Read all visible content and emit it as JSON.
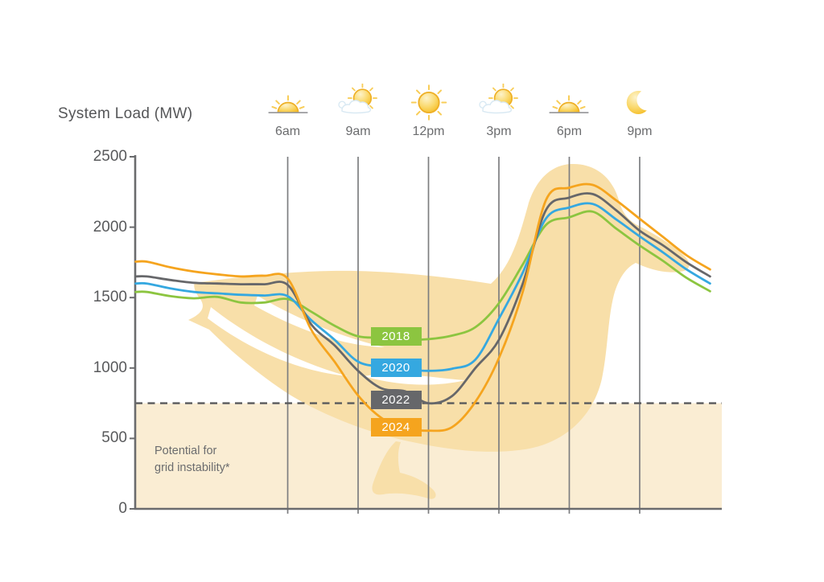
{
  "title": "System Load (MW)",
  "annotation": "Potential for\ngrid instability*",
  "colors": {
    "green": "#8CC540",
    "blue": "#35A8E0",
    "gray": "#66676A",
    "orange": "#F5A41E",
    "duck": "#F8DFA9",
    "band": "#FAEDD3",
    "grid": "#7D7E80",
    "axis": "#6A6B6D",
    "dashed": "#595A5C",
    "text": "#58595B"
  },
  "y_axis": {
    "ticks": [
      "2500",
      "2000",
      "1500",
      "1000",
      "500",
      "0"
    ],
    "tick_values": [
      2500,
      2000,
      1500,
      1000,
      500,
      0
    ]
  },
  "timeline": [
    {
      "label": "6am",
      "hour": 6,
      "icon": "sunrise-icon"
    },
    {
      "label": "9am",
      "hour": 9,
      "icon": "sun-cloud-icon"
    },
    {
      "label": "12pm",
      "hour": 12,
      "icon": "sun-icon"
    },
    {
      "label": "3pm",
      "hour": 15,
      "icon": "sun-cloud-icon"
    },
    {
      "label": "6pm",
      "hour": 18,
      "icon": "sunset-icon"
    },
    {
      "label": "9pm",
      "hour": 21,
      "icon": "moon-icon"
    }
  ],
  "chart_data": {
    "type": "line",
    "title": "System Load (MW)",
    "ylabel": "System Load (MW)",
    "ylim": [
      0,
      2500
    ],
    "y_ticks": [
      0,
      500,
      1000,
      1500,
      2000,
      2500
    ],
    "x_hours": [
      0,
      1,
      2,
      3,
      4,
      5,
      6,
      7,
      8,
      9,
      10,
      11,
      12,
      13,
      14,
      15,
      16,
      17,
      18,
      19,
      20,
      21,
      22,
      23,
      24
    ],
    "x_tick_hours": [
      6,
      9,
      12,
      15,
      18,
      21
    ],
    "x_tick_labels": [
      "6am",
      "9am",
      "12pm",
      "3pm",
      "6pm",
      "9pm"
    ],
    "grid": "vertical-only",
    "legend": "inline-badges",
    "threshold": {
      "value": 750,
      "style": "dashed",
      "label": "Potential for\ngrid instability*"
    },
    "series": [
      {
        "name": "2018",
        "color": "#8CC540",
        "values": [
          1540,
          1510,
          1495,
          1505,
          1465,
          1465,
          1490,
          1400,
          1300,
          1225,
          1215,
          1200,
          1205,
          1230,
          1290,
          1460,
          1730,
          2015,
          2070,
          2110,
          1990,
          1870,
          1760,
          1640,
          1545
        ]
      },
      {
        "name": "2020",
        "color": "#35A8E0",
        "values": [
          1600,
          1565,
          1540,
          1530,
          1520,
          1515,
          1510,
          1340,
          1200,
          1045,
          1010,
          990,
          980,
          995,
          1060,
          1350,
          1670,
          2060,
          2140,
          2165,
          2055,
          1935,
          1820,
          1700,
          1600
        ]
      },
      {
        "name": "2022",
        "color": "#66676A",
        "values": [
          1650,
          1625,
          1605,
          1600,
          1595,
          1595,
          1590,
          1310,
          1160,
          980,
          855,
          835,
          750,
          800,
          1000,
          1200,
          1590,
          2120,
          2210,
          2235,
          2120,
          1975,
          1870,
          1750,
          1650
        ]
      },
      {
        "name": "2024",
        "color": "#F5A41E",
        "values": [
          1755,
          1715,
          1685,
          1665,
          1650,
          1655,
          1635,
          1273,
          1044,
          805,
          645,
          575,
          555,
          580,
          760,
          1070,
          1530,
          2190,
          2280,
          2300,
          2190,
          2060,
          1930,
          1800,
          1700
        ]
      }
    ]
  }
}
